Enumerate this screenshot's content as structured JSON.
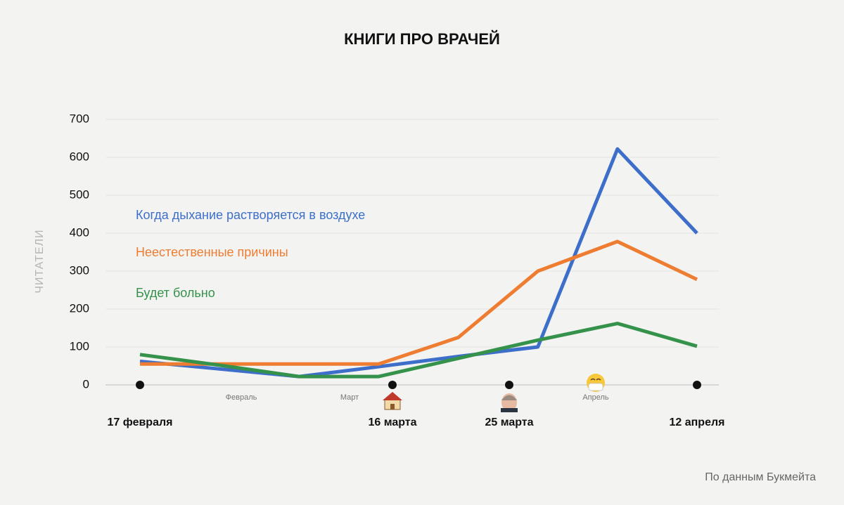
{
  "chart_data": {
    "type": "line",
    "title": "КНИГИ ПРО ВРАЧЕЙ",
    "y_label": "ЧИТАТЕЛИ",
    "source": "По данным Букмейта",
    "categories": [
      null,
      null,
      null,
      null,
      null,
      null,
      null,
      null
    ],
    "series": [
      {
        "name": "Когда дыхание растворяется в воздухе",
        "color": "#3d6fca",
        "values": [
          62,
          42,
          22,
          48,
          75,
          100,
          622,
          400
        ]
      },
      {
        "name": "Неестественные причины",
        "color": "#ee7d31",
        "values": [
          55,
          55,
          55,
          55,
          125,
          300,
          378,
          278
        ]
      },
      {
        "name": "Будет больно",
        "color": "#35924a",
        "values": [
          80,
          52,
          22,
          22,
          70,
          118,
          162,
          102
        ]
      }
    ],
    "ylim": [
      0,
      700
    ],
    "yticks": [
      0,
      100,
      200,
      300,
      400,
      500,
      600,
      700
    ],
    "grid": true,
    "events": [
      "17 февраля",
      "16 марта",
      "25 марта",
      "12 апреля"
    ],
    "months": [
      "Февраль",
      "Март",
      "Апрель"
    ]
  }
}
